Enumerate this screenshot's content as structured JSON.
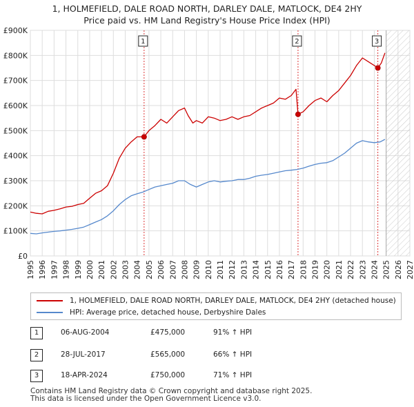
{
  "chart_data": {
    "type": "line",
    "title": "1, HOLMEFIELD, DALE ROAD NORTH, DARLEY DALE, MATLOCK, DE4 2HY",
    "subtitle": "Price paid vs. HM Land Registry's House Price Index (HPI)",
    "xlim": [
      1995,
      2027
    ],
    "ylim": [
      0,
      900000
    ],
    "x_ticks": [
      "1995",
      "1996",
      "1997",
      "1998",
      "1999",
      "2000",
      "2001",
      "2002",
      "2003",
      "2004",
      "2005",
      "2006",
      "2007",
      "2008",
      "2009",
      "2010",
      "2011",
      "2012",
      "2013",
      "2014",
      "2015",
      "2016",
      "2017",
      "2018",
      "2019",
      "2020",
      "2021",
      "2022",
      "2023",
      "2024",
      "2025",
      "2026",
      "2027"
    ],
    "y_ticks": [
      {
        "value": 0,
        "label": "£0"
      },
      {
        "value": 100000,
        "label": "£100K"
      },
      {
        "value": 200000,
        "label": "£200K"
      },
      {
        "value": 300000,
        "label": "£300K"
      },
      {
        "value": 400000,
        "label": "£400K"
      },
      {
        "value": 500000,
        "label": "£500K"
      },
      {
        "value": 600000,
        "label": "£600K"
      },
      {
        "value": 700000,
        "label": "£700K"
      },
      {
        "value": 800000,
        "label": "£800K"
      },
      {
        "value": 900000,
        "label": "£900K"
      }
    ],
    "grid": true,
    "future_hatch_from": 2025.0,
    "series": [
      {
        "name": "1, HOLMEFIELD, DALE ROAD NORTH, DARLEY DALE, MATLOCK, DE4 2HY (detached house)",
        "color": "#cc0000",
        "x": [
          1995.0,
          1995.5,
          1996.0,
          1996.5,
          1997.0,
          1997.5,
          1998.0,
          1998.5,
          1999.0,
          1999.5,
          2000.0,
          2000.5,
          2001.0,
          2001.5,
          2002.0,
          2002.5,
          2003.0,
          2003.5,
          2004.0,
          2004.59,
          2005.0,
          2005.5,
          2006.0,
          2006.5,
          2007.0,
          2007.5,
          2008.0,
          2008.3,
          2008.7,
          2009.0,
          2009.5,
          2010.0,
          2010.5,
          2011.0,
          2011.5,
          2012.0,
          2012.5,
          2013.0,
          2013.5,
          2014.0,
          2014.5,
          2015.0,
          2015.5,
          2016.0,
          2016.5,
          2017.0,
          2017.4,
          2017.57,
          2018.0,
          2018.5,
          2019.0,
          2019.5,
          2020.0,
          2020.5,
          2021.0,
          2021.5,
          2022.0,
          2022.5,
          2023.0,
          2023.5,
          2024.0,
          2024.3,
          2024.6,
          2024.9
        ],
        "y": [
          175000,
          170000,
          168000,
          178000,
          182000,
          188000,
          195000,
          198000,
          205000,
          210000,
          230000,
          250000,
          260000,
          280000,
          330000,
          390000,
          430000,
          455000,
          475000,
          475000,
          500000,
          520000,
          545000,
          530000,
          555000,
          580000,
          590000,
          560000,
          530000,
          540000,
          530000,
          555000,
          550000,
          540000,
          545000,
          555000,
          545000,
          555000,
          560000,
          575000,
          590000,
          600000,
          610000,
          630000,
          625000,
          640000,
          665000,
          565000,
          575000,
          600000,
          620000,
          630000,
          615000,
          640000,
          660000,
          690000,
          720000,
          760000,
          790000,
          775000,
          760000,
          750000,
          770000,
          810000
        ]
      },
      {
        "name": "HPI: Average price, detached house, Derbyshire Dales",
        "color": "#5588cc",
        "x": [
          1995.0,
          1995.5,
          1996.0,
          1996.5,
          1997.0,
          1997.5,
          1998.0,
          1998.5,
          1999.0,
          1999.5,
          2000.0,
          2000.5,
          2001.0,
          2001.5,
          2002.0,
          2002.5,
          2003.0,
          2003.5,
          2004.0,
          2004.5,
          2005.0,
          2005.5,
          2006.0,
          2006.5,
          2007.0,
          2007.5,
          2008.0,
          2008.5,
          2009.0,
          2009.5,
          2010.0,
          2010.5,
          2011.0,
          2011.5,
          2012.0,
          2012.5,
          2013.0,
          2013.5,
          2014.0,
          2014.5,
          2015.0,
          2015.5,
          2016.0,
          2016.5,
          2017.0,
          2017.5,
          2018.0,
          2018.5,
          2019.0,
          2019.5,
          2020.0,
          2020.5,
          2021.0,
          2021.5,
          2022.0,
          2022.5,
          2023.0,
          2023.5,
          2024.0,
          2024.5,
          2024.9
        ],
        "y": [
          90000,
          88000,
          92000,
          95000,
          98000,
          100000,
          103000,
          106000,
          110000,
          115000,
          125000,
          135000,
          145000,
          160000,
          180000,
          205000,
          225000,
          240000,
          248000,
          255000,
          265000,
          275000,
          280000,
          285000,
          290000,
          300000,
          300000,
          285000,
          275000,
          285000,
          295000,
          300000,
          295000,
          298000,
          300000,
          305000,
          305000,
          310000,
          318000,
          322000,
          325000,
          330000,
          335000,
          340000,
          342000,
          345000,
          350000,
          358000,
          365000,
          370000,
          372000,
          380000,
          395000,
          410000,
          430000,
          450000,
          460000,
          455000,
          452000,
          455000,
          465000
        ]
      }
    ],
    "annotations": [
      {
        "label": "1",
        "x": 2004.59,
        "y": 475000
      },
      {
        "label": "2",
        "x": 2017.57,
        "y": 565000
      },
      {
        "label": "3",
        "x": 2024.3,
        "y": 750000
      }
    ]
  },
  "legend": {
    "property_label": "1, HOLMEFIELD, DALE ROAD NORTH, DARLEY DALE, MATLOCK, DE4 2HY (detached house)",
    "hpi_label": "HPI: Average price, detached house, Derbyshire Dales",
    "property_color": "#cc0000",
    "hpi_color": "#5588cc"
  },
  "sales": [
    {
      "num": "1",
      "date": "06-AUG-2004",
      "price": "£475,000",
      "hpi": "91% ↑ HPI"
    },
    {
      "num": "2",
      "date": "28-JUL-2017",
      "price": "£565,000",
      "hpi": "66% ↑ HPI"
    },
    {
      "num": "3",
      "date": "18-APR-2024",
      "price": "£750,000",
      "hpi": "71% ↑ HPI"
    }
  ],
  "footer": {
    "line1": "Contains HM Land Registry data © Crown copyright and database right 2025.",
    "line2": "This data is licensed under the Open Government Licence v3.0."
  }
}
